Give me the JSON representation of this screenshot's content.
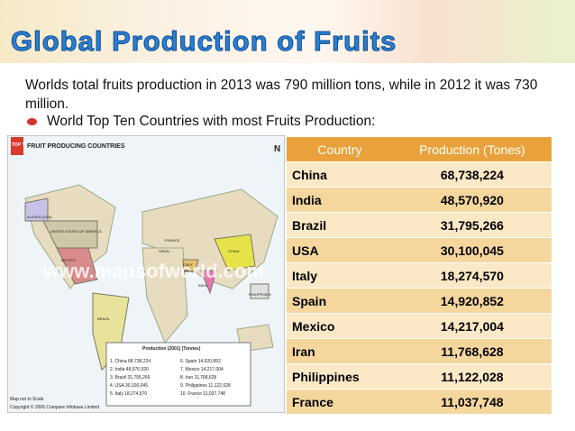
{
  "title": "Global Production of Fruits",
  "intro": "Worlds total fruits production in 2013 was 790 million tons, while in 2012 it was 730 million.",
  "bullet": "World Top Ten Countries with most Fruits Production:",
  "map": {
    "badge": "TOP TEN",
    "heading": "FRUIT PRODUCING COUNTRIES",
    "north": "N",
    "watermark": "www.mapsofworld.com",
    "labels": [
      "ALASKA (USA)",
      "UNITED STATES OF AMERICA",
      "MEXICO",
      "BRAZIL",
      "FRANCE",
      "SPAIN",
      "ITALY",
      "IRAN",
      "INDIA",
      "CHINA",
      "PHILIPPINES"
    ],
    "legend_heading": "Production (2001) (Tonnes)",
    "legend": [
      "1. China 68,738,224",
      "2. India 48,570,920",
      "3. Brazil 31,795,266",
      "4. USA 30,100,045",
      "5. Italy 18,274,570",
      "6. Spain 14,920,852",
      "7. Mexico 14,217,004",
      "8. Iran 11,768,628",
      "9. Philippines 11,122,028",
      "10. France 11,037,748"
    ],
    "scale_note": "Map not to Scale",
    "copyright": "Copyright © 2006 Compare Infobase Limited"
  },
  "table": {
    "header": [
      "Country",
      "Production (Tones)"
    ],
    "rows": [
      [
        "China",
        "68,738,224"
      ],
      [
        "India",
        "48,570,920"
      ],
      [
        "Brazil",
        "31,795,266"
      ],
      [
        "USA",
        "30,100,045"
      ],
      [
        "Italy",
        "18,274,570"
      ],
      [
        "Spain",
        "14,920,852"
      ],
      [
        "Mexico",
        "14,217,004"
      ],
      [
        "Iran",
        "11,768,628"
      ],
      [
        "Philippines",
        "11,122,028"
      ],
      [
        "France",
        "11,037,748"
      ]
    ]
  }
}
